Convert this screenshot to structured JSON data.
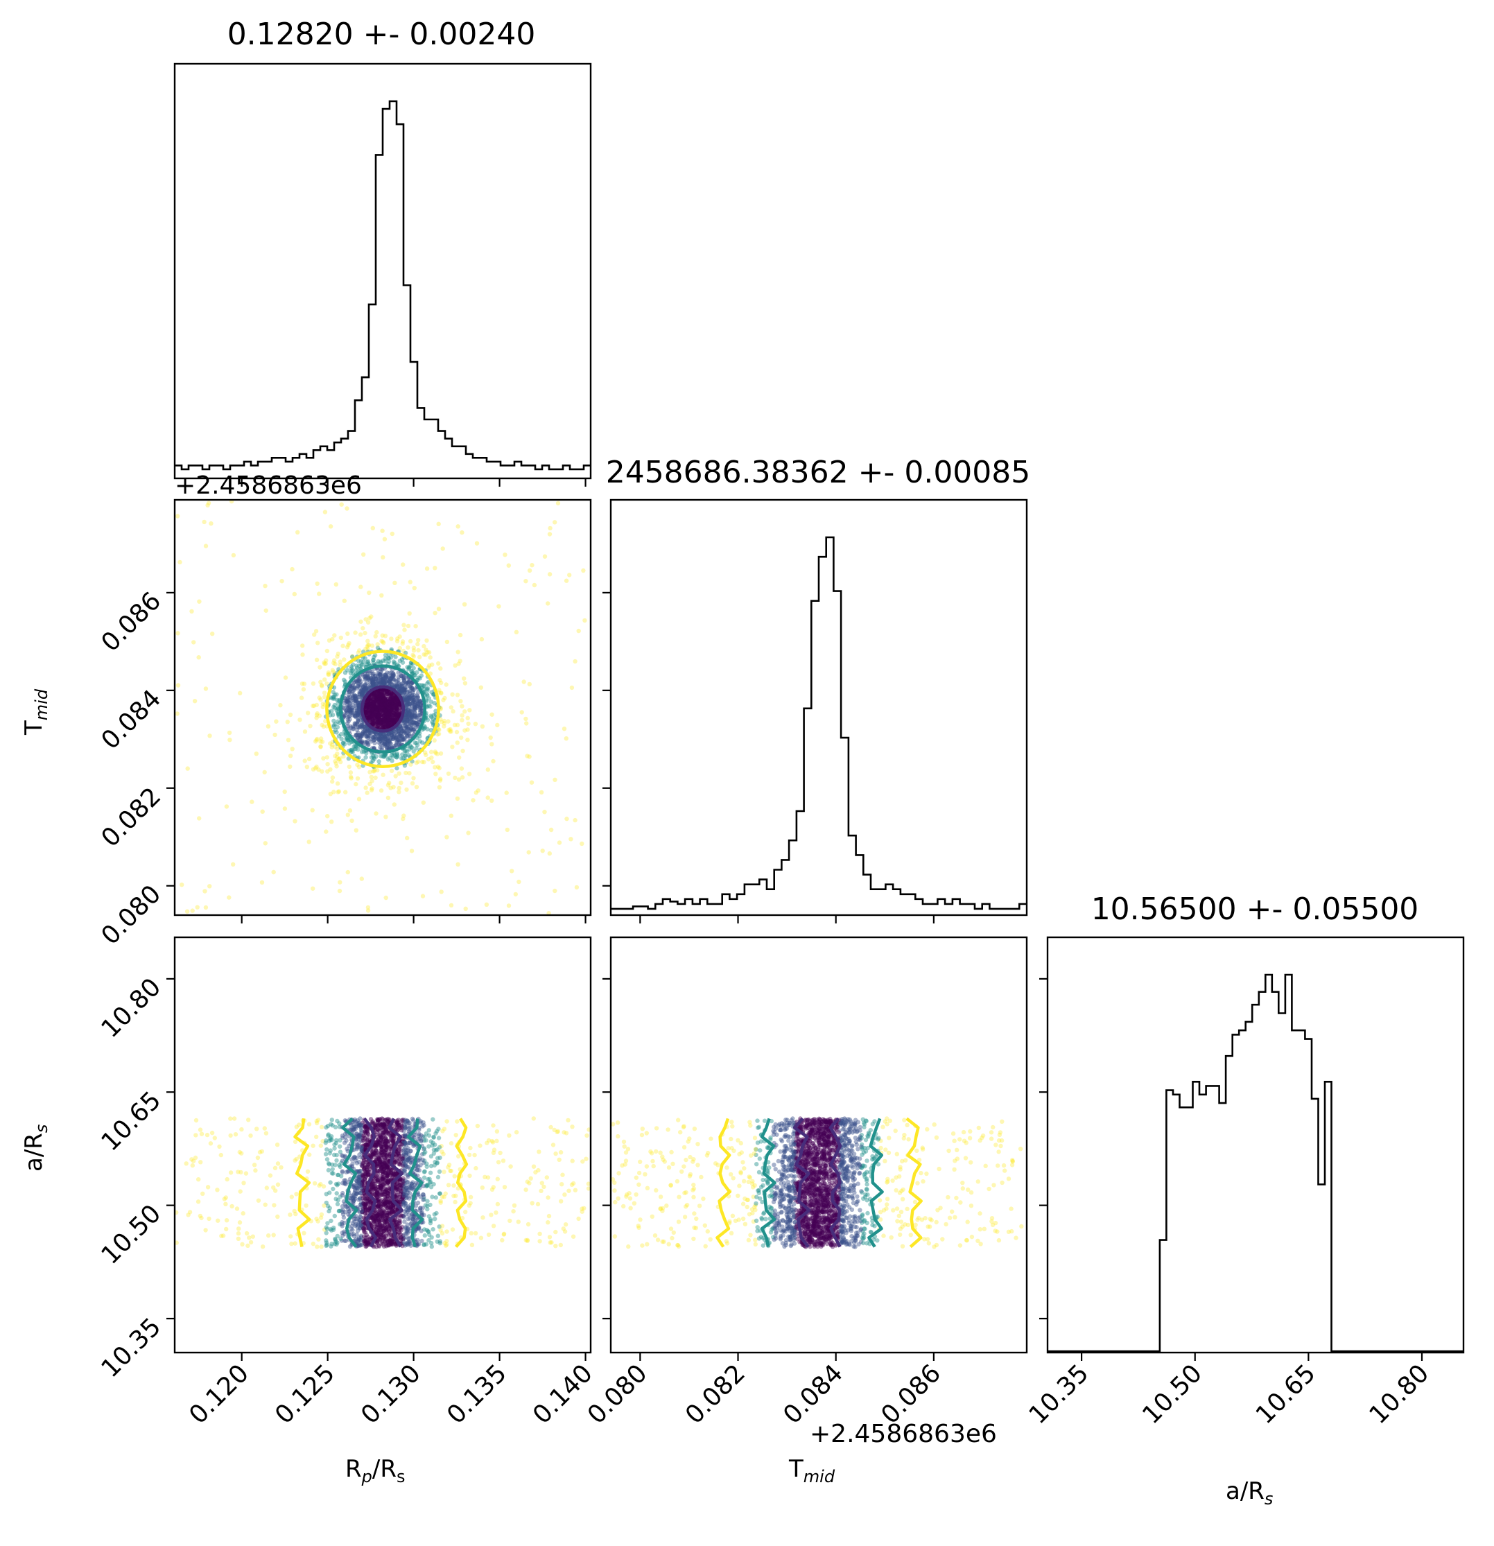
{
  "chart_data": {
    "type": "corner",
    "parameters": [
      {
        "key": "rprs",
        "label": "R",
        "label_sub1": "p",
        "label_mid": "/R",
        "label_sub2": "s"
      },
      {
        "key": "tmid",
        "label": "T",
        "label_sub1": "mid",
        "offset_text": "+2.4586863e6"
      },
      {
        "key": "ars",
        "label": "a/R",
        "label_sub1": "s"
      }
    ],
    "titles": [
      "0.12820 +- 0.00240",
      "2458686.38362 +- 0.00085",
      "10.56500 +- 0.05500"
    ],
    "offset_text": "+2.4586863e6",
    "axes": {
      "rprs": {
        "range": [
          0.1161,
          0.1403
        ],
        "ticks": [
          0.12,
          0.125,
          0.13,
          0.135,
          0.14
        ],
        "tick_labels": [
          "0.120",
          "0.125",
          "0.130",
          "0.135",
          "0.140"
        ]
      },
      "tmid": {
        "range": [
          0.0794,
          0.0879
        ],
        "ticks": [
          0.08,
          0.082,
          0.084,
          0.086
        ],
        "tick_labels": [
          "0.080",
          "0.082",
          "0.084",
          "0.086"
        ]
      },
      "ars": {
        "range": [
          10.305,
          10.855
        ],
        "ticks": [
          10.35,
          10.5,
          10.65,
          10.8
        ],
        "tick_labels": [
          "10.35",
          "10.50",
          "10.65",
          "10.80"
        ]
      }
    },
    "hist_rprs": {
      "edges_start": 0.1161,
      "edges_end": 0.1403,
      "counts": [
        3,
        2,
        3,
        3,
        2,
        3,
        3,
        2,
        3,
        3,
        4,
        3,
        4,
        4,
        5,
        5,
        4,
        5,
        6,
        5,
        7,
        8,
        7,
        9,
        10,
        12,
        20,
        26,
        45,
        84,
        96,
        98,
        92,
        50,
        30,
        18,
        15,
        15,
        12,
        10,
        8,
        8,
        6,
        5,
        5,
        4,
        4,
        3,
        3,
        4,
        3,
        3,
        2,
        3,
        2,
        2,
        3,
        2,
        2,
        3
      ]
    },
    "hist_tmid": {
      "edges_start": 0.0794,
      "edges_end": 0.0879,
      "counts": [
        1,
        1,
        1,
        1.5,
        1.5,
        1,
        2,
        3,
        2.5,
        2,
        3,
        2,
        3,
        2,
        2,
        4,
        3,
        4,
        6,
        6,
        7,
        5,
        9,
        11,
        15,
        21,
        42,
        64,
        73,
        77,
        66,
        36,
        16,
        12,
        8,
        5,
        5,
        6,
        5,
        4,
        4,
        3,
        2,
        2,
        3,
        2,
        3,
        2,
        2,
        1,
        2,
        1,
        1,
        1,
        1,
        2
      ]
    },
    "hist_ars": {
      "edges_start": 10.305,
      "edges_end": 10.855,
      "counts": [
        0,
        0,
        0,
        0,
        0,
        0,
        0,
        0,
        0,
        0,
        0,
        0,
        0,
        0,
        0,
        0,
        0,
        26,
        61,
        60,
        57,
        57,
        63,
        60,
        62,
        62,
        58,
        69,
        74,
        75,
        77,
        81,
        84,
        88,
        84,
        79,
        88,
        75,
        75,
        73,
        59,
        39,
        63,
        0,
        0,
        0,
        0,
        0,
        0,
        0,
        0,
        0,
        0,
        0,
        0,
        0,
        0,
        0,
        0,
        0,
        0,
        0,
        0
      ]
    },
    "scatter_rprs_tmid": {
      "center_x": 0.1282,
      "center_y": 0.08362,
      "contours": [
        {
          "rx": 0.0012,
          "ry": 0.00045,
          "color": "#472d7b"
        },
        {
          "rx": 0.00245,
          "ry": 0.00088,
          "color": "#21918c"
        },
        {
          "rx": 0.00325,
          "ry": 0.00118,
          "color": "#fde725"
        }
      ]
    },
    "scatter_rprs_ars": {
      "y_range": [
        10.445,
        10.615
      ],
      "contours": [
        {
          "x": [
            0.1275,
            0.1289
          ],
          "color": "#472d7b"
        },
        {
          "x": [
            0.1263,
            0.1301
          ],
          "color": "#21918c"
        },
        {
          "x": [
            0.1235,
            0.1328
          ],
          "color": "#fde725"
        }
      ]
    },
    "scatter_tmid_ars": {
      "y_range": [
        10.445,
        10.615
      ],
      "contours": [
        {
          "x": [
            0.0833,
            0.084
          ],
          "color": "#472d7b"
        },
        {
          "x": [
            0.0826,
            0.0848
          ],
          "color": "#21918c"
        },
        {
          "x": [
            0.0817,
            0.0856
          ],
          "color": "#fde725"
        }
      ]
    },
    "point_colors": [
      "#fde725",
      "#21918c",
      "#3b528b",
      "#440154"
    ],
    "grid": false,
    "legend": "none"
  }
}
